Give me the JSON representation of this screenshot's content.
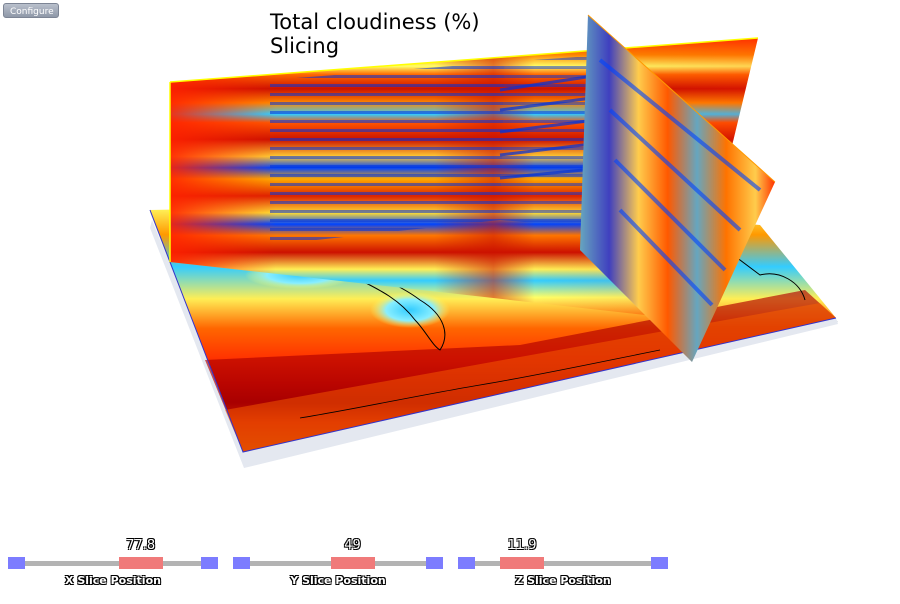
{
  "toolbar": {
    "configure_label": "Configure"
  },
  "title": {
    "line1": "Total cloudiness (%)",
    "line2": "Slicing"
  },
  "colormap": [
    "#00008b",
    "#0044ff",
    "#33ccff",
    "#ffff66",
    "#ff8800",
    "#ff2200",
    "#b00000"
  ],
  "sliders": [
    {
      "label": "X Slice Position",
      "value": "77.8",
      "fraction": 0.71
    },
    {
      "label": "Y Slice Position",
      "value": "49",
      "fraction": 0.61
    },
    {
      "label": "Z Slice Position",
      "value": "11.9",
      "fraction": 0.19
    }
  ]
}
